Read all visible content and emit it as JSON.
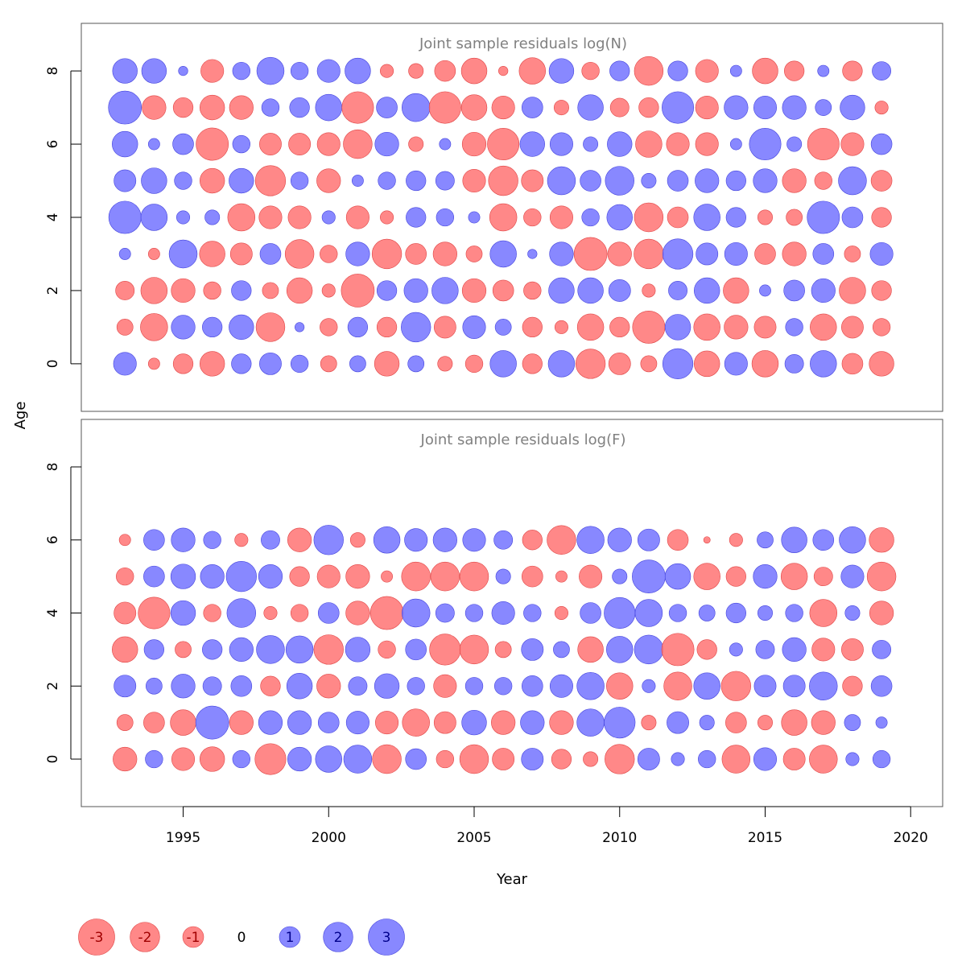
{
  "chart_data": {
    "type": "scatter",
    "style": "bubble residual plot",
    "xlabel": "Year",
    "ylabel": "Age",
    "xlim": [
      1991.5,
      2021.1
    ],
    "ylim": [
      -1.3,
      9.3
    ],
    "x_ticks": [
      1995,
      2000,
      2005,
      2010,
      2015,
      2020
    ],
    "y_ticks": [
      0,
      2,
      4,
      6,
      8
    ],
    "colors": {
      "positive": "#7373ff",
      "negative": "#ff7373",
      "positive_stroke": "#4444dd",
      "negative_stroke": "#e04444"
    },
    "years": [
      1993,
      1994,
      1995,
      1996,
      1997,
      1998,
      1999,
      2000,
      2001,
      2002,
      2003,
      2004,
      2005,
      2006,
      2007,
      2008,
      2009,
      2010,
      2011,
      2012,
      2013,
      2014,
      2015,
      2016,
      2017,
      2018,
      2019
    ],
    "panels": [
      {
        "title": "Joint sample residuals log(N)",
        "ages": [
          0,
          1,
          2,
          3,
          4,
          5,
          6,
          7,
          8
        ],
        "residuals": [
          [
            1.2,
            -0.3,
            -0.9,
            -1.4,
            0.9,
            1.1,
            0.7,
            -0.6,
            0.6,
            -1.4,
            0.6,
            -0.5,
            -0.7,
            1.6,
            -0.9,
            1.6,
            -2.0,
            -1.1,
            -0.6,
            2.1,
            -1.5,
            1.2,
            -1.6,
            0.8,
            1.6,
            -1.0,
            -1.4
          ],
          [
            -0.6,
            -1.7,
            1.3,
            0.9,
            1.4,
            -1.9,
            0.2,
            -0.7,
            0.9,
            -0.9,
            2.0,
            -1.1,
            1.2,
            0.6,
            -0.9,
            -0.4,
            -1.6,
            -0.9,
            -2.4,
            1.5,
            -1.6,
            -1.3,
            -1.1,
            0.7,
            -1.6,
            -1.1,
            -0.7
          ],
          [
            -0.8,
            -1.6,
            -1.3,
            -0.7,
            0.9,
            -0.6,
            -1.5,
            -0.4,
            -2.5,
            0.9,
            1.3,
            1.6,
            -1.3,
            -1.0,
            -0.7,
            1.5,
            1.5,
            1.1,
            -0.4,
            0.8,
            1.5,
            -1.5,
            0.3,
            1.0,
            1.3,
            -1.6,
            -0.9
          ],
          [
            0.3,
            -0.3,
            1.8,
            -1.5,
            -1.1,
            1.0,
            -1.9,
            -0.7,
            1.3,
            -2.0,
            -1.0,
            -1.3,
            -0.6,
            1.6,
            0.2,
            1.3,
            -2.5,
            -1.3,
            -2.0,
            2.1,
            1.1,
            1.2,
            -1.0,
            -1.3,
            1.0,
            -0.6,
            1.2
          ],
          [
            2.4,
            1.6,
            0.4,
            0.5,
            -1.7,
            -1.2,
            -1.2,
            0.4,
            -1.2,
            -0.4,
            0.9,
            0.7,
            0.3,
            -1.7,
            -0.7,
            -1.2,
            0.7,
            1.5,
            -1.9,
            -1.0,
            1.6,
            0.9,
            -0.5,
            -0.6,
            2.4,
            1.0,
            -0.9
          ],
          [
            1.1,
            1.5,
            0.7,
            -1.4,
            1.4,
            -2.1,
            0.7,
            -1.3,
            0.3,
            0.7,
            0.9,
            0.8,
            -1.2,
            -2.0,
            -1.1,
            1.8,
            1.0,
            1.9,
            0.5,
            1.0,
            1.3,
            0.9,
            1.3,
            -1.3,
            -0.7,
            1.8,
            -1.0
          ],
          [
            1.5,
            0.3,
            1.0,
            -2.4,
            0.7,
            -1.1,
            -1.1,
            -1.2,
            -1.9,
            1.3,
            -0.5,
            0.3,
            -1.3,
            -2.3,
            1.4,
            1.2,
            0.5,
            1.4,
            -1.6,
            -1.2,
            -1.2,
            0.3,
            2.3,
            0.5,
            -2.3,
            -1.2,
            1.0
          ],
          [
            2.5,
            -1.3,
            -0.9,
            -1.4,
            -1.3,
            0.7,
            0.9,
            1.6,
            -2.3,
            1.0,
            1.8,
            -2.3,
            -1.5,
            -1.2,
            1.0,
            -0.5,
            1.5,
            -0.8,
            -0.9,
            2.3,
            -1.2,
            1.3,
            1.2,
            1.3,
            0.6,
            1.4,
            -0.4
          ],
          [
            1.4,
            1.4,
            0.2,
            -1.2,
            0.7,
            1.7,
            0.7,
            1.2,
            1.5,
            -0.4,
            -0.5,
            -1.0,
            -1.5,
            -0.2,
            -1.6,
            1.4,
            -0.7,
            0.9,
            -1.9,
            0.9,
            -1.2,
            0.3,
            -1.5,
            -0.9,
            0.3,
            -0.9,
            0.8
          ]
        ]
      },
      {
        "title": "Joint sample residuals log(F)",
        "ages": [
          0,
          1,
          2,
          3,
          4,
          5,
          6
        ],
        "residuals": [
          [
            -1.3,
            0.7,
            -1.2,
            -1.4,
            0.7,
            -2.2,
            1.3,
            1.6,
            1.8,
            -1.9,
            1.0,
            -0.7,
            -1.9,
            -1.1,
            1.1,
            -0.9,
            -0.5,
            -2.0,
            1.1,
            0.4,
            0.7,
            -1.8,
            1.2,
            -1.1,
            -1.8,
            0.4,
            0.7
          ],
          [
            -0.6,
            -1.0,
            -1.5,
            2.5,
            -1.3,
            1.3,
            1.3,
            1.0,
            1.2,
            -1.2,
            -1.7,
            -1.1,
            1.4,
            -1.3,
            1.3,
            -1.3,
            1.7,
            2.2,
            -0.5,
            1.1,
            0.5,
            -1.0,
            -0.5,
            -1.5,
            -1.3,
            0.6,
            0.3
          ],
          [
            1.1,
            0.6,
            1.3,
            0.8,
            1.0,
            -0.9,
            1.5,
            -1.3,
            0.8,
            1.4,
            0.7,
            -1.2,
            0.7,
            0.7,
            1.0,
            1.2,
            1.7,
            -1.6,
            0.4,
            -1.8,
            1.6,
            -2.0,
            1.1,
            1.1,
            1.8,
            -0.9,
            1.0
          ],
          [
            -1.5,
            0.9,
            -0.6,
            0.9,
            1.3,
            1.8,
            1.7,
            -2.0,
            1.4,
            -0.7,
            1.0,
            -2.2,
            -1.9,
            -0.6,
            1.1,
            0.6,
            -1.5,
            1.6,
            1.9,
            -2.4,
            -0.9,
            0.4,
            0.8,
            1.3,
            -1.2,
            -1.1,
            0.8
          ],
          [
            -1.1,
            -2.3,
            1.4,
            -0.7,
            1.9,
            -0.4,
            -0.7,
            1.0,
            -1.3,
            -2.5,
            1.8,
            0.8,
            0.7,
            1.2,
            0.7,
            -0.4,
            1.0,
            2.2,
            1.7,
            0.7,
            0.6,
            0.9,
            0.5,
            0.7,
            -1.7,
            0.5,
            -1.3
          ],
          [
            -0.7,
            1.0,
            1.4,
            1.3,
            2.1,
            1.3,
            -0.9,
            -1.2,
            -1.3,
            -0.3,
            -1.9,
            -1.9,
            -1.9,
            0.5,
            -1.0,
            -0.3,
            -1.2,
            0.5,
            2.5,
            1.5,
            -1.6,
            -0.9,
            1.3,
            -1.6,
            -0.8,
            1.2,
            -1.9
          ],
          [
            -0.3,
            1.0,
            1.3,
            0.7,
            -0.4,
            0.8,
            -1.3,
            2.0,
            -0.5,
            1.6,
            1.2,
            1.3,
            1.2,
            0.8,
            -0.9,
            -1.9,
            1.7,
            1.3,
            1.1,
            -1.0,
            -0.1,
            -0.4,
            0.6,
            1.5,
            1.0,
            1.6,
            -1.4
          ]
        ]
      }
    ],
    "legend": {
      "position": "bottom-left",
      "entries": [
        {
          "label": "-3",
          "value": -3
        },
        {
          "label": "-2",
          "value": -2
        },
        {
          "label": "-1",
          "value": -1
        },
        {
          "label": "0",
          "value": 0
        },
        {
          "label": "1",
          "value": 1
        },
        {
          "label": "2",
          "value": 2
        },
        {
          "label": "3",
          "value": 3
        }
      ]
    }
  }
}
